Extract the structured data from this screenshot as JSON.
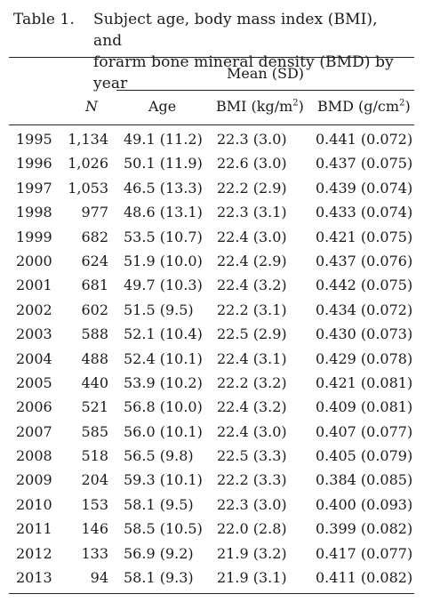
{
  "caption": {
    "label": "Table 1.",
    "line1": "Subject age, body mass index (BMI), and",
    "line2": "forarm bone mineral density (BMD) by year"
  },
  "header": {
    "group": "Mean (SD)",
    "n": "N",
    "age": "Age",
    "bmi_prefix": "BMI (kg/m",
    "bmi_sup": "2",
    "bmi_suffix": ")",
    "bmd_prefix": "BMD (g/cm",
    "bmd_sup": "2",
    "bmd_suffix": ")"
  },
  "rows": [
    {
      "year": "1995",
      "n": "1,134",
      "age": "49.1 (11.2)",
      "bmi": "22.3 (3.0)",
      "bmd": "0.441 (0.072)"
    },
    {
      "year": "1996",
      "n": "1,026",
      "age": "50.1 (11.9)",
      "bmi": "22.6 (3.0)",
      "bmd": "0.437 (0.075)"
    },
    {
      "year": "1997",
      "n": "1,053",
      "age": "46.5 (13.3)",
      "bmi": "22.2 (2.9)",
      "bmd": "0.439 (0.074)"
    },
    {
      "year": "1998",
      "n": "977",
      "age": "48.6 (13.1)",
      "bmi": "22.3 (3.1)",
      "bmd": "0.433 (0.074)"
    },
    {
      "year": "1999",
      "n": "682",
      "age": "53.5 (10.7)",
      "bmi": "22.4 (3.0)",
      "bmd": "0.421 (0.075)"
    },
    {
      "year": "2000",
      "n": "624",
      "age": "51.9 (10.0)",
      "bmi": "22.4 (2.9)",
      "bmd": "0.437 (0.076)"
    },
    {
      "year": "2001",
      "n": "681",
      "age": "49.7 (10.3)",
      "bmi": "22.4 (3.2)",
      "bmd": "0.442 (0.075)"
    },
    {
      "year": "2002",
      "n": "602",
      "age": "51.5 (9.5)",
      "bmi": "22.2 (3.1)",
      "bmd": "0.434 (0.072)"
    },
    {
      "year": "2003",
      "n": "588",
      "age": "52.1 (10.4)",
      "bmi": "22.5 (2.9)",
      "bmd": "0.430 (0.073)"
    },
    {
      "year": "2004",
      "n": "488",
      "age": "52.4 (10.1)",
      "bmi": "22.4 (3.1)",
      "bmd": "0.429 (0.078)"
    },
    {
      "year": "2005",
      "n": "440",
      "age": "53.9 (10.2)",
      "bmi": "22.2 (3.2)",
      "bmd": "0.421 (0.081)"
    },
    {
      "year": "2006",
      "n": "521",
      "age": "56.8 (10.0)",
      "bmi": "22.4 (3.2)",
      "bmd": "0.409 (0.081)"
    },
    {
      "year": "2007",
      "n": "585",
      "age": "56.0 (10.1)",
      "bmi": "22.4 (3.0)",
      "bmd": "0.407 (0.077)"
    },
    {
      "year": "2008",
      "n": "518",
      "age": "56.5 (9.8)",
      "bmi": "22.5 (3.3)",
      "bmd": "0.405 (0.079)"
    },
    {
      "year": "2009",
      "n": "204",
      "age": "59.3 (10.1)",
      "bmi": "22.2 (3.3)",
      "bmd": "0.384 (0.085)"
    },
    {
      "year": "2010",
      "n": "153",
      "age": "58.1 (9.5)",
      "bmi": "22.3 (3.0)",
      "bmd": "0.400 (0.093)"
    },
    {
      "year": "2011",
      "n": "146",
      "age": "58.5 (10.5)",
      "bmi": "22.0 (2.8)",
      "bmd": "0.399 (0.082)"
    },
    {
      "year": "2012",
      "n": "133",
      "age": "56.9 (9.2)",
      "bmi": "21.9 (3.2)",
      "bmd": "0.417 (0.077)"
    },
    {
      "year": "2013",
      "n": "94",
      "age": "58.1 (9.3)",
      "bmi": "21.9 (3.1)",
      "bmd": "0.411 (0.082)"
    }
  ]
}
